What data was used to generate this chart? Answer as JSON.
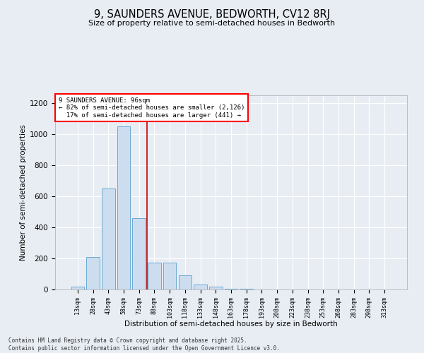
{
  "title": "9, SAUNDERS AVENUE, BEDWORTH, CV12 8RJ",
  "subtitle": "Size of property relative to semi-detached houses in Bedworth",
  "xlabel": "Distribution of semi-detached houses by size in Bedworth",
  "ylabel": "Number of semi-detached properties",
  "categories": [
    "13sqm",
    "28sqm",
    "43sqm",
    "58sqm",
    "73sqm",
    "88sqm",
    "103sqm",
    "118sqm",
    "133sqm",
    "148sqm",
    "163sqm",
    "178sqm",
    "193sqm",
    "208sqm",
    "223sqm",
    "238sqm",
    "253sqm",
    "268sqm",
    "283sqm",
    "298sqm",
    "313sqm"
  ],
  "values": [
    20,
    210,
    650,
    1050,
    460,
    175,
    175,
    90,
    30,
    20,
    5,
    5,
    0,
    0,
    0,
    0,
    0,
    0,
    0,
    0,
    0
  ],
  "bar_color": "#ccddf0",
  "bar_edge_color": "#6aaad4",
  "vline_color": "#cc0000",
  "vline_pos": 4.5,
  "annotation_title": "9 SAUNDERS AVENUE: 96sqm",
  "annotation_line1": "← 82% of semi-detached houses are smaller (2,126)",
  "annotation_line2": "17% of semi-detached houses are larger (441) →",
  "ylim": [
    0,
    1250
  ],
  "yticks": [
    0,
    200,
    400,
    600,
    800,
    1000,
    1200
  ],
  "bg_color": "#e8edf4",
  "grid_color": "#ffffff",
  "footer1": "Contains HM Land Registry data © Crown copyright and database right 2025.",
  "footer2": "Contains public sector information licensed under the Open Government Licence v3.0."
}
